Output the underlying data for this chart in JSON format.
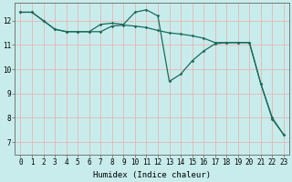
{
  "bg_color": "#c8ecec",
  "grid_color": "#e8b4b4",
  "line_color": "#1a6b5a",
  "xlabel": "Humidex (Indice chaleur)",
  "xlabel_fontsize": 6.5,
  "tick_fontsize": 5.5,
  "ylim": [
    6.5,
    12.75
  ],
  "xlim": [
    -0.5,
    23.5
  ],
  "yticks": [
    7,
    8,
    9,
    10,
    11,
    12
  ],
  "xticks": [
    0,
    1,
    2,
    3,
    4,
    5,
    6,
    7,
    8,
    9,
    10,
    11,
    12,
    13,
    14,
    15,
    16,
    17,
    18,
    19,
    20,
    21,
    22,
    23
  ],
  "series1_x": [
    0,
    1,
    2,
    3,
    4,
    5,
    6,
    7,
    8,
    9,
    10,
    11,
    12,
    13,
    14,
    15,
    16,
    17,
    18,
    19,
    20,
    21,
    22,
    23
  ],
  "series1_y": [
    12.35,
    12.35,
    12.0,
    11.65,
    11.55,
    11.55,
    11.55,
    11.55,
    11.78,
    11.82,
    11.78,
    11.72,
    11.6,
    11.5,
    11.45,
    11.38,
    11.28,
    11.1,
    11.1,
    11.1,
    11.1,
    9.4,
    7.95,
    7.3
  ],
  "series2_x": [
    0,
    1,
    2,
    3,
    4,
    5,
    6,
    7,
    8,
    9,
    10,
    11,
    12,
    13,
    14,
    15,
    16,
    17,
    18,
    19,
    20,
    21,
    22,
    23
  ],
  "series2_y": [
    12.35,
    12.35,
    12.0,
    11.65,
    11.55,
    11.55,
    11.55,
    11.85,
    11.9,
    11.85,
    12.35,
    12.45,
    12.2,
    9.5,
    9.8,
    10.35,
    10.75,
    11.05,
    11.1,
    11.1,
    11.1,
    9.4,
    8.0,
    7.3
  ]
}
